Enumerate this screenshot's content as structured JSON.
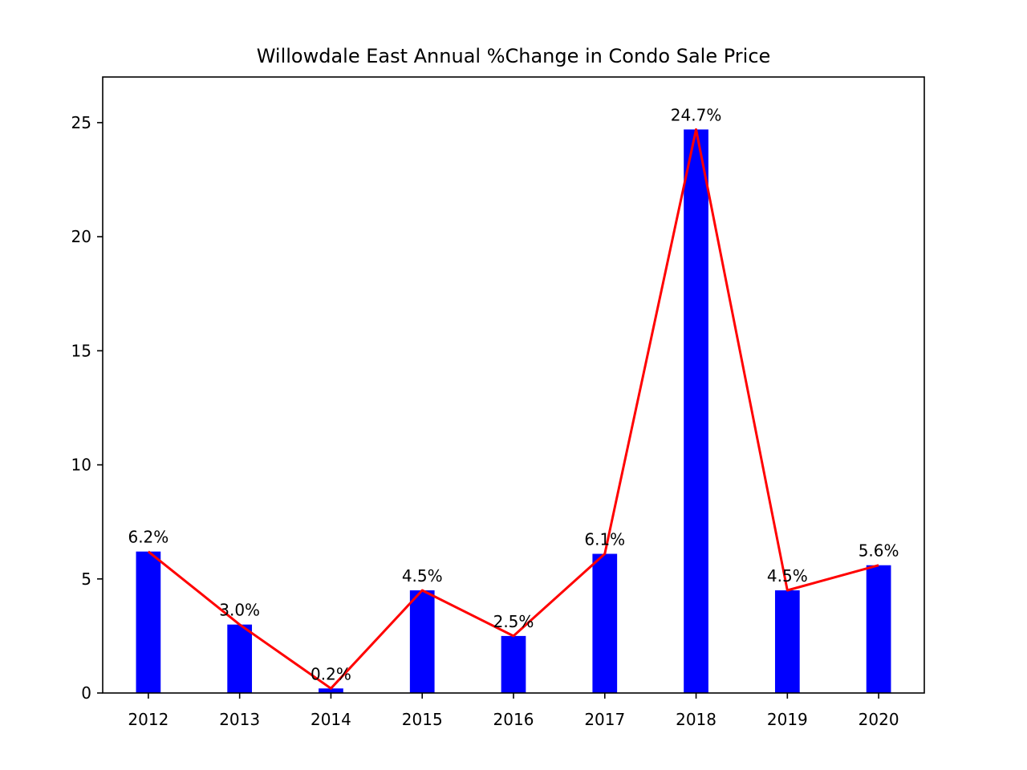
{
  "chart_data": {
    "type": "bar",
    "title": "Willowdale East Annual %Change in Condo Sale Price",
    "xlabel": "",
    "ylabel": "",
    "categories": [
      "2012",
      "2013",
      "2014",
      "2015",
      "2016",
      "2017",
      "2018",
      "2019",
      "2020"
    ],
    "values": [
      6.2,
      3.0,
      0.2,
      4.5,
      2.5,
      6.1,
      24.7,
      4.5,
      5.6
    ],
    "data_labels": [
      "6.2%",
      "3.0%",
      "0.2%",
      "4.5%",
      "2.5%",
      "6.1%",
      "24.7%",
      "4.5%",
      "5.6%"
    ],
    "line_overlay": true,
    "ylim": [
      0,
      27
    ],
    "yticks": [
      0,
      5,
      10,
      15,
      20,
      25
    ],
    "grid": false,
    "colors": {
      "bar": "#0000ff",
      "line": "#ff0000",
      "axis": "#000000"
    }
  }
}
